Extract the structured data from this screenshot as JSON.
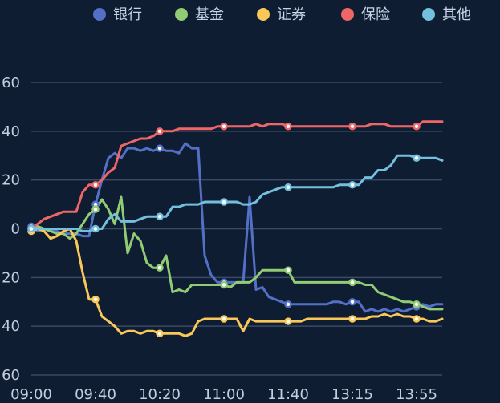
{
  "chart_data": {
    "type": "line",
    "title": "",
    "xlabel": "",
    "ylabel": "",
    "ylim": [
      -60,
      60
    ],
    "yticks": [
      -60,
      -40,
      -20,
      0,
      20,
      40,
      60
    ],
    "ytick_labels": [
      "60",
      "40",
      "20",
      "0",
      "20",
      "40",
      "60"
    ],
    "xtick_labels": [
      "09:00",
      "09:40",
      "10:20",
      "11:00",
      "11:40",
      "13:15",
      "13:55"
    ],
    "xtick_index": [
      0,
      10,
      20,
      30,
      40,
      50,
      60
    ],
    "legend_position": "top",
    "grid": true,
    "series": [
      {
        "name": "银行",
        "color": "#5470c6",
        "values": [
          1,
          -1,
          0,
          -1,
          -1,
          -2,
          -2,
          -2,
          -3,
          -3,
          10,
          20,
          29,
          31,
          29,
          33,
          33,
          32,
          33,
          32,
          33,
          32,
          32,
          31,
          35,
          33,
          33,
          -11,
          -19,
          -22,
          -22,
          -22,
          -22,
          -22,
          13,
          -25,
          -24,
          -28,
          -29,
          -30,
          -31,
          -31,
          -31,
          -31,
          -31,
          -31,
          -31,
          -30,
          -30,
          -31,
          -30,
          -30,
          -34,
          -33,
          -34,
          -33,
          -34,
          -33,
          -34,
          -33,
          -32,
          -31,
          -32,
          -31,
          -31
        ]
      },
      {
        "name": "基金",
        "color": "#91cc75",
        "values": [
          0,
          1,
          0,
          -1,
          -2,
          -2,
          -4,
          -2,
          2,
          6,
          8,
          12,
          8,
          2,
          13,
          -10,
          -2,
          -5,
          -14,
          -16,
          -16,
          -11,
          -26,
          -25,
          -26,
          -23,
          -23,
          -23,
          -23,
          -23,
          -23,
          -24,
          -22,
          -22,
          -22,
          -20,
          -17,
          -17,
          -17,
          -17,
          -17,
          -22,
          -22,
          -22,
          -22,
          -22,
          -22,
          -22,
          -22,
          -22,
          -22,
          -22,
          -23,
          -23,
          -26,
          -27,
          -28,
          -29,
          -30,
          -30,
          -31,
          -32,
          -33,
          -33,
          -33
        ]
      },
      {
        "name": "证券",
        "color": "#fac858",
        "values": [
          -1,
          0,
          -1,
          -4,
          -3,
          -1,
          0,
          -5,
          -18,
          -29,
          -29,
          -36,
          -38,
          -40,
          -43,
          -42,
          -42,
          -43,
          -42,
          -42,
          -43,
          -43,
          -43,
          -43,
          -44,
          -43,
          -38,
          -37,
          -37,
          -37,
          -37,
          -37,
          -37,
          -42,
          -37,
          -38,
          -38,
          -38,
          -38,
          -38,
          -38,
          -38,
          -38,
          -37,
          -37,
          -37,
          -37,
          -37,
          -37,
          -37,
          -37,
          -37,
          -37,
          -36,
          -36,
          -35,
          -36,
          -35,
          -36,
          -36,
          -37,
          -37,
          -38,
          -38,
          -37
        ]
      },
      {
        "name": "保险",
        "color": "#ee6666",
        "values": [
          0,
          2,
          4,
          5,
          6,
          7,
          7,
          7,
          15,
          18,
          18,
          20,
          23,
          25,
          34,
          35,
          36,
          37,
          37,
          38,
          40,
          40,
          40,
          41,
          41,
          41,
          41,
          41,
          41,
          42,
          42,
          42,
          42,
          42,
          42,
          43,
          42,
          43,
          43,
          43,
          42,
          42,
          42,
          42,
          42,
          42,
          42,
          42,
          42,
          42,
          42,
          42,
          42,
          43,
          43,
          43,
          42,
          42,
          42,
          42,
          42,
          44,
          44,
          44,
          44
        ]
      },
      {
        "name": "其他",
        "color": "#73c0de",
        "values": [
          0,
          0,
          0,
          0,
          0,
          0,
          0,
          0,
          -1,
          -1,
          0,
          0,
          4,
          6,
          3,
          3,
          3,
          4,
          5,
          5,
          5,
          5,
          9,
          9,
          10,
          10,
          10,
          11,
          11,
          11,
          11,
          11,
          11,
          10,
          10,
          11,
          14,
          15,
          16,
          17,
          17,
          17,
          17,
          17,
          17,
          17,
          17,
          17,
          18,
          18,
          18,
          18,
          21,
          21,
          24,
          24,
          26,
          30,
          30,
          30,
          29,
          29,
          29,
          29,
          28
        ]
      }
    ],
    "markers": [
      0,
      10,
      20,
      30,
      40,
      50,
      60
    ]
  }
}
